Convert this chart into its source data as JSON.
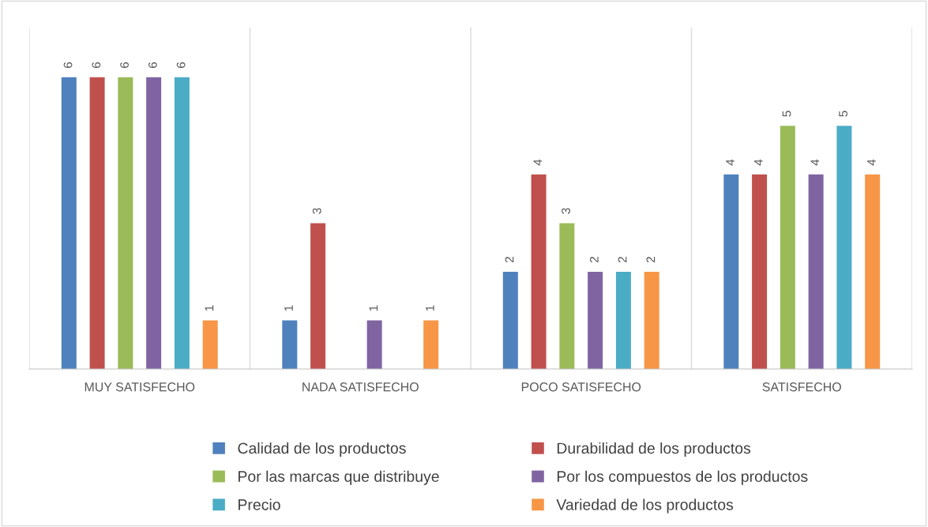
{
  "chart_data": {
    "type": "bar",
    "categories": [
      "MUY SATISFECHO",
      "NADA SATISFECHO",
      "POCO SATISFECHO",
      "SATISFECHO"
    ],
    "series": [
      {
        "name": "Calidad de los productos",
        "color": "#4f81bd",
        "values": [
          6,
          1,
          2,
          4
        ]
      },
      {
        "name": "Durabilidad de los productos",
        "color": "#c0504d",
        "values": [
          6,
          3,
          4,
          4
        ]
      },
      {
        "name": "Por las marcas que distribuye",
        "color": "#9bbb59",
        "values": [
          6,
          null,
          3,
          5
        ]
      },
      {
        "name": "Por los compuestos de los productos",
        "color": "#8064a2",
        "values": [
          6,
          1,
          2,
          4
        ]
      },
      {
        "name": "Precio",
        "color": "#4bacc6",
        "values": [
          6,
          null,
          2,
          5
        ]
      },
      {
        "name": "Variedad de los productos",
        "color": "#f79646",
        "values": [
          1,
          1,
          2,
          4
        ]
      }
    ],
    "data_labels": true,
    "grid": "x",
    "legend": "bottom",
    "tick_labels": "x"
  }
}
